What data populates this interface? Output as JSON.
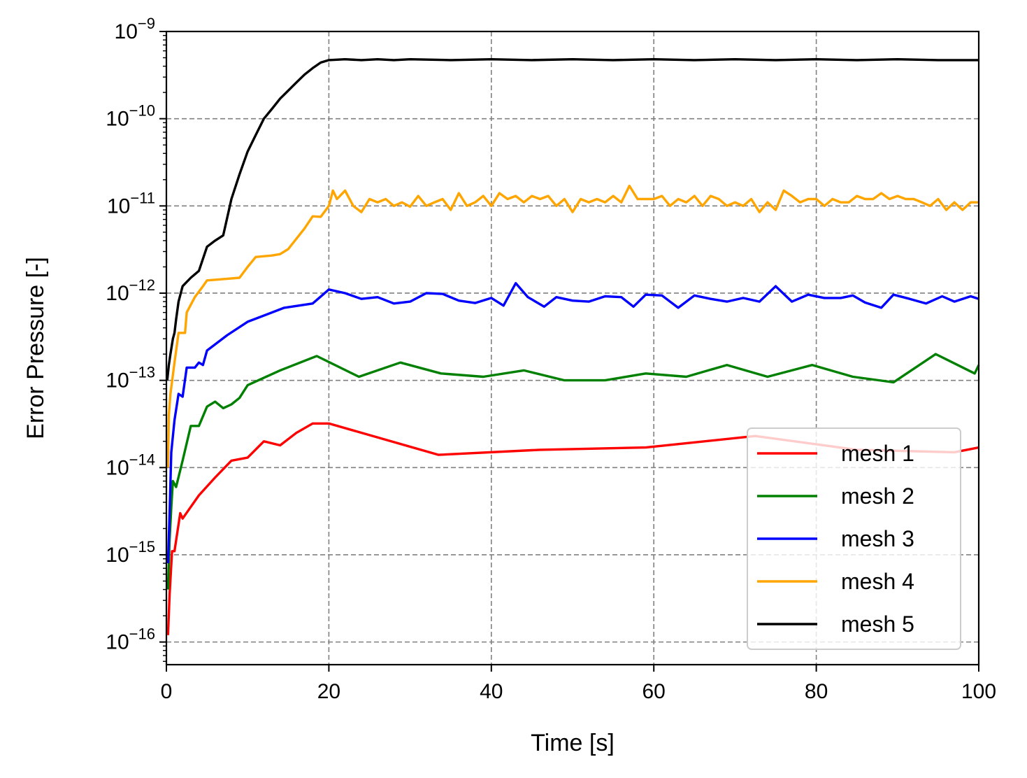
{
  "chart_data": {
    "type": "line",
    "xlabel": "Time [s]",
    "ylabel": "Error Pressure [-]",
    "xlim": [
      0,
      100
    ],
    "ylim": [
      5.5e-17,
      1e-09
    ],
    "yscale": "log",
    "grid": true,
    "legend_position": "lower-right",
    "x_ticks": [
      {
        "value": 0,
        "label": "0"
      },
      {
        "value": 20,
        "label": "20"
      },
      {
        "value": 40,
        "label": "40"
      },
      {
        "value": 60,
        "label": "60"
      },
      {
        "value": 80,
        "label": "80"
      },
      {
        "value": 100,
        "label": "100"
      }
    ],
    "y_ticks": [
      {
        "exp": -16,
        "base": "10",
        "sup": "−16"
      },
      {
        "exp": -15,
        "base": "10",
        "sup": "−15"
      },
      {
        "exp": -14,
        "base": "10",
        "sup": "−14"
      },
      {
        "exp": -13,
        "base": "10",
        "sup": "−13"
      },
      {
        "exp": -12,
        "base": "10",
        "sup": "−12"
      },
      {
        "exp": -11,
        "base": "10",
        "sup": "−11"
      },
      {
        "exp": -10,
        "base": "10",
        "sup": "−10"
      },
      {
        "exp": -9,
        "base": "10",
        "sup": "−9"
      }
    ],
    "series": [
      {
        "name": "mesh 1",
        "color": "#ff0000",
        "points": [
          [
            0.2,
            1.2e-16
          ],
          [
            0.4,
            3.5e-16
          ],
          [
            0.7,
            1.1e-15
          ],
          [
            1,
            1.1e-15
          ],
          [
            1.7,
            3e-15
          ],
          [
            2,
            2.6e-15
          ],
          [
            4,
            4.8e-15
          ],
          [
            6,
            7.7e-15
          ],
          [
            8,
            1.2e-14
          ],
          [
            10,
            1.3e-14
          ],
          [
            12,
            2e-14
          ],
          [
            14,
            1.8e-14
          ],
          [
            16,
            2.5e-14
          ],
          [
            18,
            3.2e-14
          ],
          [
            20,
            3.2e-14
          ],
          [
            33.5,
            1.4e-14
          ],
          [
            46,
            1.6e-14
          ],
          [
            59,
            1.7e-14
          ],
          [
            72.5,
            2.3e-14
          ],
          [
            85,
            1.6e-14
          ],
          [
            97,
            1.5e-14
          ],
          [
            100,
            1.7e-14
          ]
        ]
      },
      {
        "name": "mesh 2",
        "color": "#008000",
        "points": [
          [
            0.2,
            4e-16
          ],
          [
            0.4,
            1.5e-15
          ],
          [
            0.6,
            3.5e-15
          ],
          [
            0.8,
            7e-15
          ],
          [
            1.2,
            6e-15
          ],
          [
            2,
            1.2e-14
          ],
          [
            3,
            3e-14
          ],
          [
            4,
            3e-14
          ],
          [
            5,
            5e-14
          ],
          [
            6,
            5.7e-14
          ],
          [
            7,
            4.8e-14
          ],
          [
            8,
            5.3e-14
          ],
          [
            9,
            6.3e-14
          ],
          [
            10,
            8.8e-14
          ],
          [
            14,
            1.3e-13
          ],
          [
            18.5,
            1.9e-13
          ],
          [
            23.7,
            1.1e-13
          ],
          [
            28.8,
            1.6e-13
          ],
          [
            33.8,
            1.2e-13
          ],
          [
            39,
            1.1e-13
          ],
          [
            44,
            1.3e-13
          ],
          [
            49,
            1e-13
          ],
          [
            54,
            1e-13
          ],
          [
            59,
            1.2e-13
          ],
          [
            64,
            1.1e-13
          ],
          [
            69,
            1.5e-13
          ],
          [
            74,
            1.1e-13
          ],
          [
            79.5,
            1.5e-13
          ],
          [
            84.5,
            1.1e-13
          ],
          [
            89.5,
            9.5e-14
          ],
          [
            94.7,
            2e-13
          ],
          [
            99.5,
            1.2e-13
          ],
          [
            100,
            1.5e-13
          ]
        ]
      },
      {
        "name": "mesh 3",
        "color": "#0000ff",
        "points": [
          [
            0.2,
            8e-16
          ],
          [
            0.4,
            3e-15
          ],
          [
            0.6,
            1.5e-14
          ],
          [
            1,
            3.5e-14
          ],
          [
            1.5,
            7e-14
          ],
          [
            2,
            6.5e-14
          ],
          [
            2.5,
            1.4e-13
          ],
          [
            3.5,
            1.4e-13
          ],
          [
            4,
            1.6e-13
          ],
          [
            4.5,
            1.5e-13
          ],
          [
            5,
            2.2e-13
          ],
          [
            7.5,
            3.3e-13
          ],
          [
            10,
            4.7e-13
          ],
          [
            14.5,
            6.8e-13
          ],
          [
            18,
            7.6e-13
          ],
          [
            20,
            1.1e-12
          ],
          [
            22,
            1e-12
          ],
          [
            24,
            8.6e-13
          ],
          [
            26,
            9e-13
          ],
          [
            28,
            7.6e-13
          ],
          [
            30,
            8e-13
          ],
          [
            32,
            1e-12
          ],
          [
            34,
            9.8e-13
          ],
          [
            36,
            8.2e-13
          ],
          [
            38,
            7.7e-13
          ],
          [
            40,
            8.8e-13
          ],
          [
            41.5,
            7.2e-13
          ],
          [
            43,
            1.3e-12
          ],
          [
            44.5,
            9e-13
          ],
          [
            46.5,
            7e-13
          ],
          [
            48,
            9e-13
          ],
          [
            50,
            8.2e-13
          ],
          [
            52,
            8e-13
          ],
          [
            54,
            9.2e-13
          ],
          [
            56,
            9e-13
          ],
          [
            57.5,
            7e-13
          ],
          [
            59,
            9.6e-13
          ],
          [
            61,
            9.4e-13
          ],
          [
            63,
            6.8e-13
          ],
          [
            65,
            9.4e-13
          ],
          [
            67,
            8.6e-13
          ],
          [
            69,
            8e-13
          ],
          [
            71,
            8.8e-13
          ],
          [
            73,
            8e-13
          ],
          [
            75,
            1.2e-12
          ],
          [
            77,
            8e-13
          ],
          [
            79,
            9.6e-13
          ],
          [
            81,
            8.8e-13
          ],
          [
            83,
            8.8e-13
          ],
          [
            84.5,
            9.4e-13
          ],
          [
            86,
            7.8e-13
          ],
          [
            88,
            6.8e-13
          ],
          [
            89.5,
            9.6e-13
          ],
          [
            91.5,
            8.6e-13
          ],
          [
            93.5,
            7.6e-13
          ],
          [
            95.5,
            9.2e-13
          ],
          [
            97,
            8e-13
          ],
          [
            99,
            9.2e-13
          ],
          [
            100,
            8.6e-13
          ]
        ]
      },
      {
        "name": "mesh 4",
        "color": "#ffa500",
        "points": [
          [
            0.2,
            1e-14
          ],
          [
            0.3,
            4e-14
          ],
          [
            0.5,
            7e-14
          ],
          [
            1,
            1.6e-13
          ],
          [
            1.5,
            3.5e-13
          ],
          [
            2.3,
            3.5e-13
          ],
          [
            2.5,
            6e-13
          ],
          [
            3.5,
            9e-13
          ],
          [
            4.5,
            1.2e-12
          ],
          [
            5,
            1.4e-12
          ],
          [
            7,
            1.45e-12
          ],
          [
            9,
            1.5e-12
          ],
          [
            10,
            2e-12
          ],
          [
            11,
            2.6e-12
          ],
          [
            13,
            2.7e-12
          ],
          [
            14,
            2.8e-12
          ],
          [
            15,
            3.2e-12
          ],
          [
            16,
            4.2e-12
          ],
          [
            17,
            5.5e-12
          ],
          [
            18,
            7.6e-12
          ],
          [
            19,
            7.5e-12
          ],
          [
            20,
            1e-11
          ],
          [
            20.5,
            1.5e-11
          ],
          [
            21,
            1.2e-11
          ],
          [
            22,
            1.5e-11
          ],
          [
            23,
            1e-11
          ],
          [
            24,
            8.5e-12
          ],
          [
            25,
            1.2e-11
          ],
          [
            26,
            1.1e-11
          ],
          [
            27,
            1.2e-11
          ],
          [
            28,
            1e-11
          ],
          [
            29,
            1.1e-11
          ],
          [
            30,
            9.8e-12
          ],
          [
            31,
            1.3e-11
          ],
          [
            32,
            1e-11
          ],
          [
            33,
            1.1e-11
          ],
          [
            34,
            1.2e-11
          ],
          [
            35,
            9e-12
          ],
          [
            36,
            1.4e-11
          ],
          [
            37,
            1e-11
          ],
          [
            38,
            1.1e-11
          ],
          [
            39,
            1.3e-11
          ],
          [
            40,
            1e-11
          ],
          [
            41,
            1.4e-11
          ],
          [
            42,
            1.2e-11
          ],
          [
            43,
            1.3e-11
          ],
          [
            44,
            1.1e-11
          ],
          [
            45,
            1.3e-11
          ],
          [
            46,
            1.2e-11
          ],
          [
            47,
            1.3e-11
          ],
          [
            48,
            1e-11
          ],
          [
            49,
            1.2e-11
          ],
          [
            50,
            8.5e-12
          ],
          [
            51,
            1.2e-11
          ],
          [
            52,
            1.1e-11
          ],
          [
            53,
            1.2e-11
          ],
          [
            54,
            1.1e-11
          ],
          [
            55,
            1.3e-11
          ],
          [
            56,
            1.1e-11
          ],
          [
            57,
            1.7e-11
          ],
          [
            58,
            1.2e-11
          ],
          [
            59,
            1.2e-11
          ],
          [
            60,
            1.2e-11
          ],
          [
            61,
            1.3e-11
          ],
          [
            62,
            1e-11
          ],
          [
            63,
            1.2e-11
          ],
          [
            64,
            1.1e-11
          ],
          [
            65,
            1.3e-11
          ],
          [
            66,
            1e-11
          ],
          [
            67,
            1.3e-11
          ],
          [
            68,
            1.2e-11
          ],
          [
            69,
            1e-11
          ],
          [
            70,
            1.1e-11
          ],
          [
            71,
            1e-11
          ],
          [
            72,
            1.2e-11
          ],
          [
            73,
            8.5e-12
          ],
          [
            74,
            1.1e-11
          ],
          [
            75,
            9e-12
          ],
          [
            76,
            1.5e-11
          ],
          [
            77,
            1.3e-11
          ],
          [
            78,
            1.1e-11
          ],
          [
            79,
            1.2e-11
          ],
          [
            80,
            1.2e-11
          ],
          [
            81,
            1e-11
          ],
          [
            82,
            1.2e-11
          ],
          [
            83,
            1.1e-11
          ],
          [
            84,
            1.1e-11
          ],
          [
            85,
            1.3e-11
          ],
          [
            86,
            1.2e-11
          ],
          [
            87,
            1.2e-11
          ],
          [
            88,
            1.4e-11
          ],
          [
            89,
            1.2e-11
          ],
          [
            90,
            1.3e-11
          ],
          [
            91,
            1.2e-11
          ],
          [
            92,
            1.2e-11
          ],
          [
            93,
            1.1e-11
          ],
          [
            94,
            1e-11
          ],
          [
            95,
            1.2e-11
          ],
          [
            96,
            9e-12
          ],
          [
            97,
            1.1e-11
          ],
          [
            98,
            9e-12
          ],
          [
            99,
            1.1e-11
          ],
          [
            100,
            1.1e-11
          ]
        ]
      },
      {
        "name": "mesh 5",
        "color": "#000000",
        "points": [
          [
            0.1,
            1e-13
          ],
          [
            0.3,
            1.5e-13
          ],
          [
            0.5,
            2e-13
          ],
          [
            0.8,
            3e-13
          ],
          [
            1,
            3.5e-13
          ],
          [
            1.2,
            5e-13
          ],
          [
            1.5,
            8e-13
          ],
          [
            2,
            1.2e-12
          ],
          [
            3,
            1.5e-12
          ],
          [
            4,
            1.8e-12
          ],
          [
            5,
            3.4e-12
          ],
          [
            6,
            4e-12
          ],
          [
            7,
            4.6e-12
          ],
          [
            8,
            1.2e-11
          ],
          [
            9,
            2.3e-11
          ],
          [
            10,
            4.2e-11
          ],
          [
            11,
            6.5e-11
          ],
          [
            12,
            1e-10
          ],
          [
            13,
            1.3e-10
          ],
          [
            14,
            1.7e-10
          ],
          [
            15,
            2.1e-10
          ],
          [
            16,
            2.6e-10
          ],
          [
            17,
            3.2e-10
          ],
          [
            18,
            3.8e-10
          ],
          [
            19,
            4.4e-10
          ],
          [
            20,
            4.7e-10
          ],
          [
            22,
            4.8e-10
          ],
          [
            24,
            4.7e-10
          ],
          [
            26,
            4.8e-10
          ],
          [
            28,
            4.7e-10
          ],
          [
            30,
            4.8e-10
          ],
          [
            35,
            4.7e-10
          ],
          [
            40,
            4.8e-10
          ],
          [
            45,
            4.7e-10
          ],
          [
            50,
            4.8e-10
          ],
          [
            55,
            4.7e-10
          ],
          [
            60,
            4.8e-10
          ],
          [
            65,
            4.7e-10
          ],
          [
            70,
            4.8e-10
          ],
          [
            75,
            4.7e-10
          ],
          [
            80,
            4.8e-10
          ],
          [
            85,
            4.7e-10
          ],
          [
            90,
            4.8e-10
          ],
          [
            95,
            4.7e-10
          ],
          [
            100,
            4.7e-10
          ]
        ]
      }
    ]
  }
}
